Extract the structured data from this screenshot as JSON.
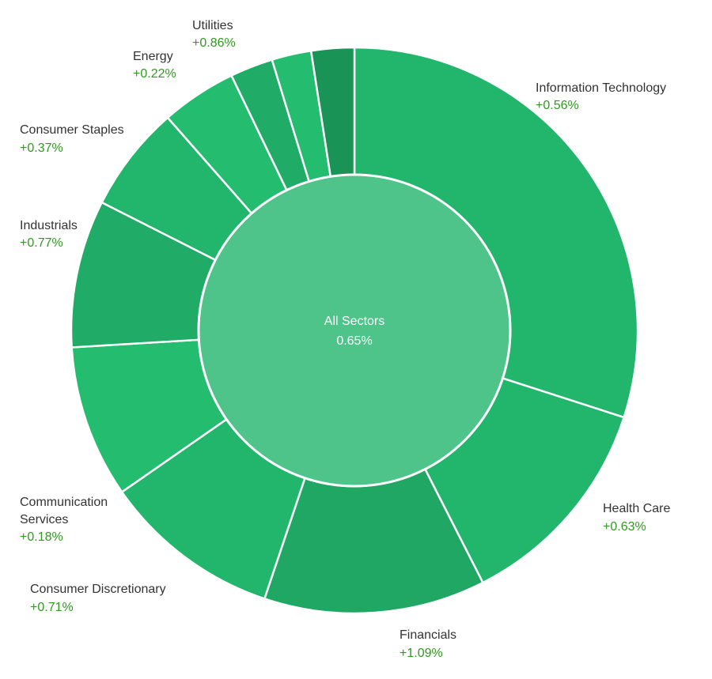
{
  "chart_data": {
    "type": "sunburst",
    "center": {
      "label": "All Sectors",
      "value": "0.65%",
      "color": "#4fc48a"
    },
    "pct_color": "#2e9a1e",
    "separator_color": "#ffffff",
    "sectors": [
      {
        "name": "Information Technology",
        "pct": "+0.56%",
        "weight": 30.6,
        "color": "#22b66c"
      },
      {
        "name": "Health Care",
        "pct": "+0.63%",
        "weight": 12.8,
        "color": "#22b66c"
      },
      {
        "name": "Financials",
        "pct": "+1.09%",
        "weight": 12.9,
        "color": "#20a764"
      },
      {
        "name": "Consumer Discretionary",
        "pct": "+0.71%",
        "weight": 10.4,
        "color": "#22b66c"
      },
      {
        "name": "Communication Services",
        "pct": "+0.18%",
        "weight": 8.9,
        "color": "#24bd70"
      },
      {
        "name": "Industrials",
        "pct": "+0.77%",
        "weight": 8.6,
        "color": "#20ab66"
      },
      {
        "name": "Consumer Staples",
        "pct": "+0.37%",
        "weight": 6.2,
        "color": "#22b66c"
      },
      {
        "name": "Energy",
        "pct": "+0.22%",
        "weight": 4.4,
        "color": "#24bd70"
      },
      {
        "name": "Utilities",
        "pct": "+0.86%",
        "weight": 2.5,
        "color": "#20ab66"
      },
      {
        "name": "",
        "pct": "",
        "weight": 2.3,
        "color": "#24bd70"
      },
      {
        "name": "",
        "pct": "",
        "weight": 2.5,
        "color": "#1a9356"
      }
    ]
  }
}
